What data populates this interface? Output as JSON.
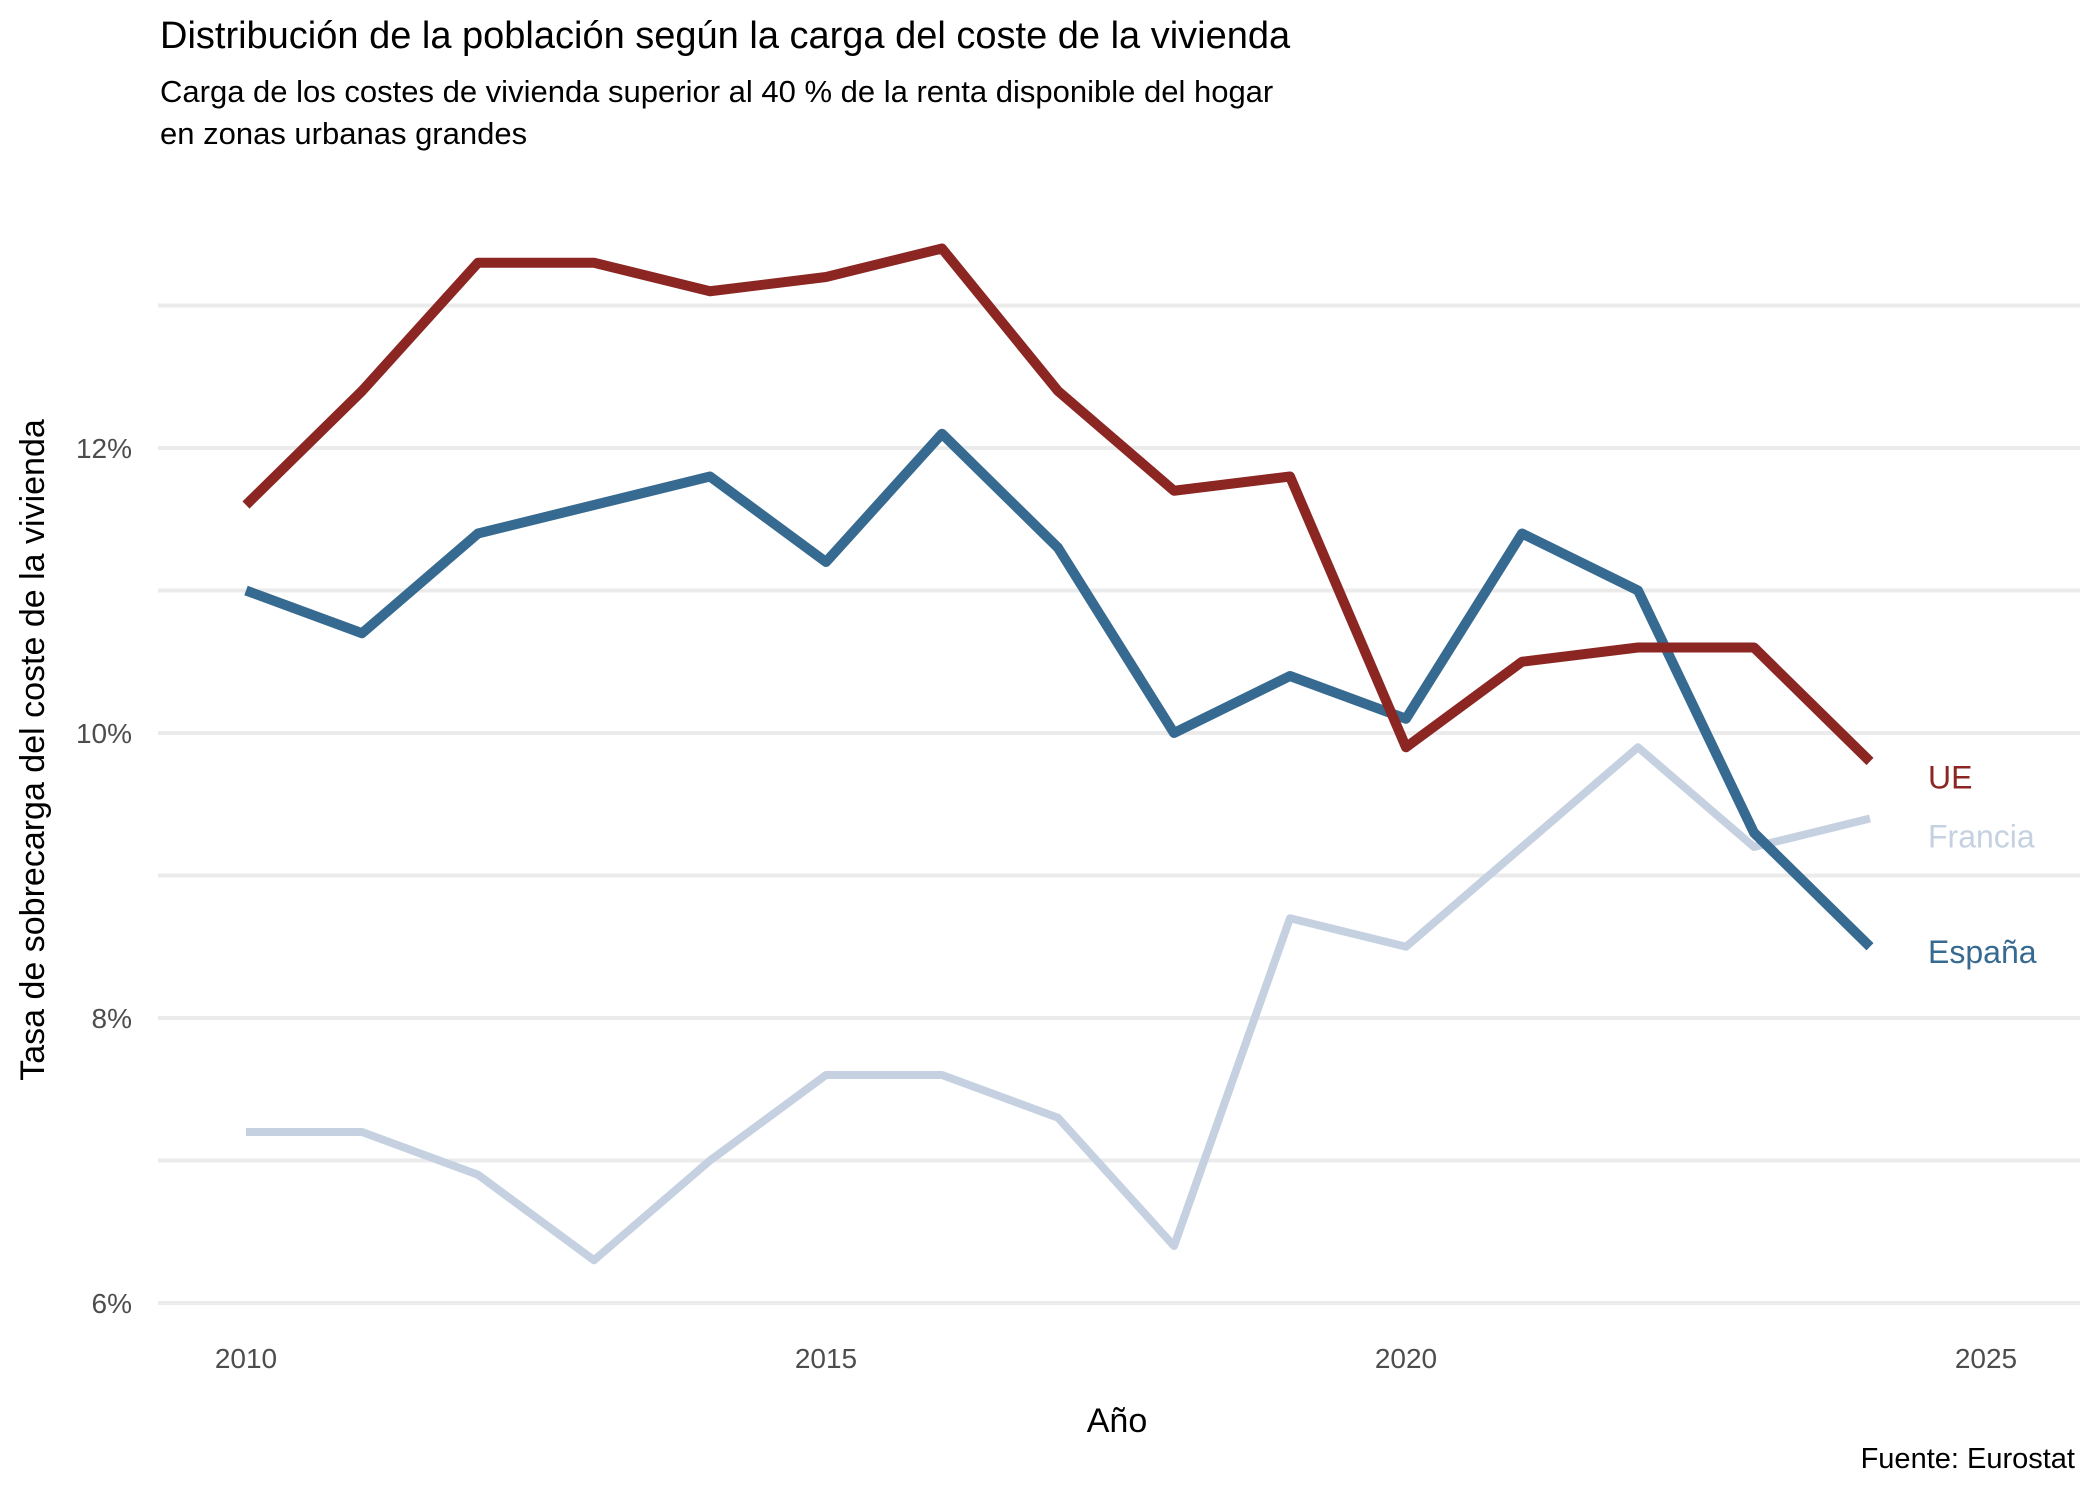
{
  "title": "Distribución de la población según la carga del coste de la vivienda",
  "subtitle_line1": "Carga de los costes de vivienda superior al 40 % de la renta disponible del hogar",
  "subtitle_line2": "en zonas urbanas grandes",
  "source": "Fuente: Eurostat",
  "colors": {
    "grid": "#EBEBEB",
    "tick_label": "#4D4D4D",
    "text": "#000000",
    "ue": "#8C2623",
    "espana": "#366A90",
    "francia": "#C5D1E1"
  },
  "chart_data": {
    "type": "line",
    "title": "Distribución de la población según la carga del coste de la vivienda",
    "subtitle": "Carga de los costes de vivienda superior al 40 % de la renta disponible del hogar en zonas urbanas grandes",
    "xlabel": "Año",
    "ylabel": "Tasa de sobrecarga del coste de la vivienda",
    "x": [
      2010,
      2011,
      2012,
      2013,
      2014,
      2015,
      2016,
      2017,
      2018,
      2019,
      2020,
      2021,
      2022,
      2023,
      2024
    ],
    "series": [
      {
        "name": "UE",
        "color": "#8C2623",
        "stroke_width": 10,
        "values": [
          11.6,
          12.4,
          13.3,
          13.3,
          13.1,
          13.2,
          13.4,
          12.4,
          11.7,
          11.8,
          9.9,
          10.5,
          10.6,
          10.6,
          9.8
        ]
      },
      {
        "name": "Francia",
        "color": "#C5D1E1",
        "stroke_width": 8,
        "values": [
          7.2,
          7.2,
          6.9,
          6.3,
          7.0,
          7.6,
          7.6,
          7.3,
          6.4,
          8.7,
          8.5,
          9.2,
          9.9,
          9.2,
          9.4
        ]
      },
      {
        "name": "España",
        "color": "#366A90",
        "stroke_width": 10,
        "values": [
          11.0,
          10.7,
          11.4,
          11.6,
          11.8,
          11.2,
          12.1,
          11.3,
          10.0,
          10.4,
          10.1,
          11.4,
          11.0,
          9.3,
          8.5
        ]
      }
    ],
    "x_ticks": [
      2010,
      2015,
      2020,
      2025
    ],
    "y_ticks": [
      6,
      8,
      10,
      12
    ],
    "y_tick_suffix": "%",
    "y_grid_values": [
      6,
      7,
      8,
      9,
      10,
      11,
      12,
      13
    ],
    "xlim": [
      2009.2,
      2025.8
    ],
    "ylim": [
      5.6,
      13.75
    ],
    "grid": "horizontal-only",
    "legend_position": "direct-labels-at-line-ends"
  }
}
